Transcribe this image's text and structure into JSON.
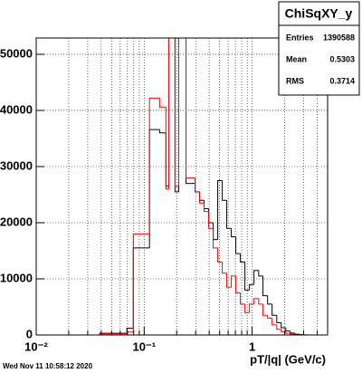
{
  "chart_data": {
    "type": "histogram",
    "stats": {
      "title": "ChiSqXY_y",
      "rows": [
        {
          "label": "Entries",
          "value": 1390588
        },
        {
          "label": "Mean",
          "value": 0.5303
        },
        {
          "label": "RMS",
          "value": 0.3714
        }
      ]
    },
    "x_label": "pT/|q| (GeV/c)",
    "footer": "Wed Nov 11 10:58:12 2020",
    "xscale": "log",
    "grid": true,
    "xlim": [
      0.01,
      5.0
    ],
    "ylim": [
      0,
      52900
    ],
    "xticks": [
      {
        "value": 0.01,
        "label": "10⁻²"
      },
      {
        "value": 0.1,
        "label": "10⁻¹"
      },
      1
    ],
    "xminorticks": [
      0.02,
      0.03,
      0.04,
      0.05,
      0.06,
      0.07,
      0.08,
      0.09,
      0.2,
      0.3,
      0.4,
      0.5,
      0.6,
      0.7,
      0.8,
      0.9,
      2,
      3,
      4,
      5
    ],
    "yticks": [
      0,
      10000,
      20000,
      30000,
      40000,
      50000
    ],
    "bins": [
      0.01,
      0.0388,
      0.0692,
      0.0793,
      0.112,
      0.139,
      0.159,
      0.169,
      0.193,
      0.209,
      0.244,
      0.296,
      0.326,
      0.359,
      0.396,
      0.436,
      0.48,
      0.529,
      0.582,
      0.641,
      0.706,
      0.778,
      0.857,
      0.944,
      1.04,
      1.15,
      1.26,
      1.39,
      1.53,
      1.69,
      1.86,
      2.05,
      2.25,
      2.48,
      2.74,
      3.01,
      3.32,
      3.66,
      5.0
    ],
    "series": [
      {
        "color": "#000000",
        "values": [
          0,
          300,
          1200,
          15500,
          36600,
          36000,
          26500,
          56000,
          25500,
          55000,
          27000,
          25500,
          24000,
          22500,
          20000,
          17000,
          27500,
          24000,
          19000,
          17500,
          14500,
          13000,
          8000,
          9000,
          11500,
          10500,
          7000,
          5500,
          3500,
          2200,
          1300,
          700,
          350,
          150,
          60,
          20,
          0,
          0
        ]
      },
      {
        "color": "#ff0000",
        "values": [
          0,
          200,
          500,
          18000,
          42200,
          40600,
          26000,
          57000,
          26500,
          56000,
          28000,
          25500,
          23500,
          22000,
          19000,
          15500,
          13000,
          11000,
          8500,
          10500,
          7500,
          5500,
          4000,
          5500,
          6500,
          5500,
          3500,
          3000,
          1800,
          1000,
          600,
          300,
          150,
          50,
          20,
          0,
          0,
          0
        ]
      }
    ]
  }
}
